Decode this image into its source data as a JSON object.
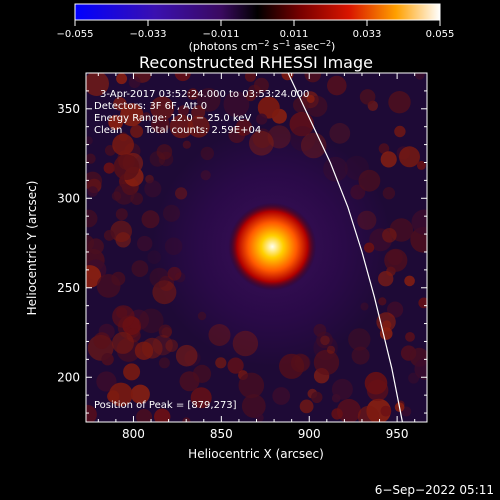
{
  "colorbar": {
    "ticks": [
      "−0.055",
      "−0.033",
      "−0.011",
      "0.011",
      "0.033",
      "0.055"
    ],
    "unit_main": "(photons cm",
    "unit_sup1": "−2",
    "unit_mid1": " s",
    "unit_sup2": "−1",
    "unit_mid2": " asec",
    "unit_sup3": "−2",
    "unit_end": ")",
    "range": [
      -0.055,
      0.055
    ]
  },
  "annotations": {
    "time": "3-Apr-2017 03:52:24.000 to 03:53:24.000",
    "detectors": "Detectors: 3F 6F, Att 0",
    "energy": "Energy Range: 12.0 − 25.0 keV",
    "clean": "Clean",
    "counts": "Total counts: 2.59E+04",
    "peak": "Position of Peak = [879,273]"
  },
  "footer": {
    "date": "6−Sep−2022 05:11"
  },
  "chart_data": {
    "type": "heatmap",
    "title": "Reconstructed RHESSI Image",
    "xlabel": "Heliocentric X (arcsec)",
    "ylabel": "Heliocentric Y (arcsec)",
    "xlim": [
      773,
      967
    ],
    "ylim": [
      175,
      370
    ],
    "xticks": [
      800,
      850,
      900,
      950
    ],
    "yticks": [
      200,
      250,
      300,
      350
    ],
    "peak": {
      "x": 879,
      "y": 273
    },
    "limb_curve": [
      [
        888,
        370
      ],
      [
        900,
        345
      ],
      [
        912,
        320
      ],
      [
        922,
        295
      ],
      [
        930,
        270
      ],
      [
        937,
        245
      ],
      [
        942,
        225
      ],
      [
        947,
        205
      ],
      [
        951,
        185
      ],
      [
        953,
        175
      ]
    ]
  }
}
